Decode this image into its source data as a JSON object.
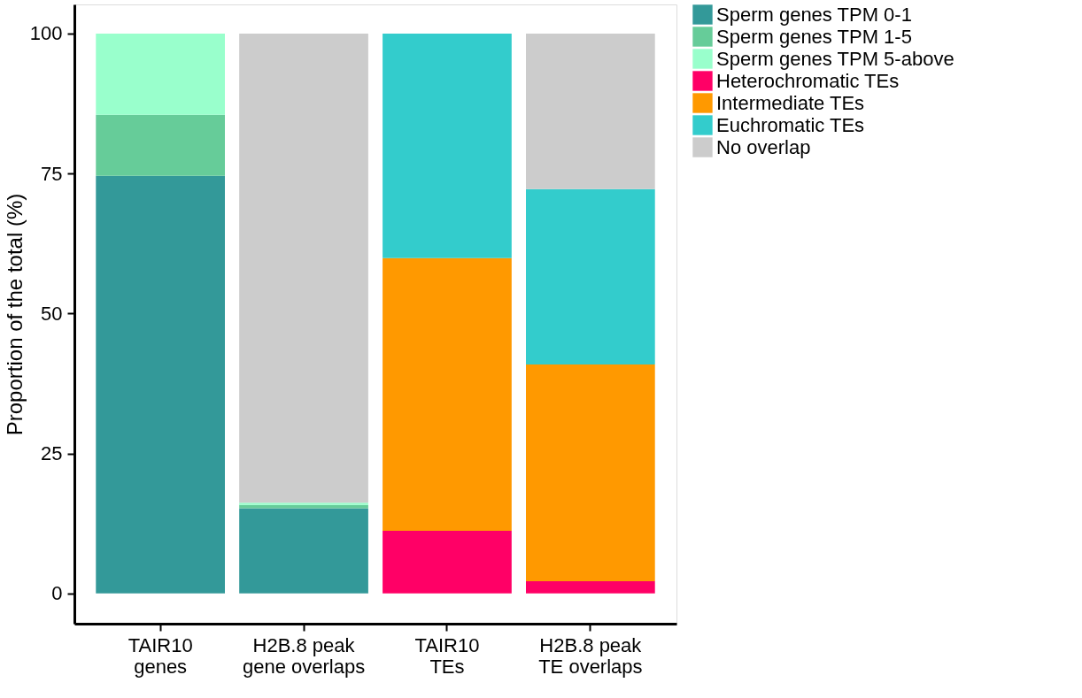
{
  "chart_data": {
    "type": "bar",
    "stacked": true,
    "ylabel": "Proportion of the total (%)",
    "categories": [
      "TAIR10\ngenes",
      "H2B.8 peak\ngene overlaps",
      "TAIR10\nTEs",
      "H2B.8 peak\nTE overlaps"
    ],
    "series": [
      {
        "name": "Sperm genes TPM 0-1",
        "color": "#339999",
        "values": [
          74.6,
          15.2,
          null,
          null
        ]
      },
      {
        "name": "Sperm genes TPM 1-5",
        "color": "#66cc99",
        "values": [
          10.9,
          0.6,
          null,
          null
        ]
      },
      {
        "name": "Sperm genes TPM 5-above",
        "color": "#99ffcc",
        "values": [
          14.5,
          0.4,
          null,
          null
        ]
      },
      {
        "name": "Heterochromatic TEs",
        "color": "#ff0066",
        "values": [
          null,
          null,
          11.2,
          2.2
        ]
      },
      {
        "name": "Intermediate TEs",
        "color": "#ff9900",
        "values": [
          null,
          null,
          48.7,
          38.7
        ]
      },
      {
        "name": "Euchromatic TEs",
        "color": "#33cccc",
        "values": [
          null,
          null,
          40.1,
          31.3
        ]
      },
      {
        "name": "No overlap",
        "color": "#cccccc",
        "values": [
          null,
          83.8,
          null,
          27.8
        ]
      }
    ],
    "ylim": [
      -5.4,
      105.2
    ],
    "yticks": [
      0,
      25,
      50,
      75,
      100
    ],
    "grid": false,
    "legend": "right"
  }
}
